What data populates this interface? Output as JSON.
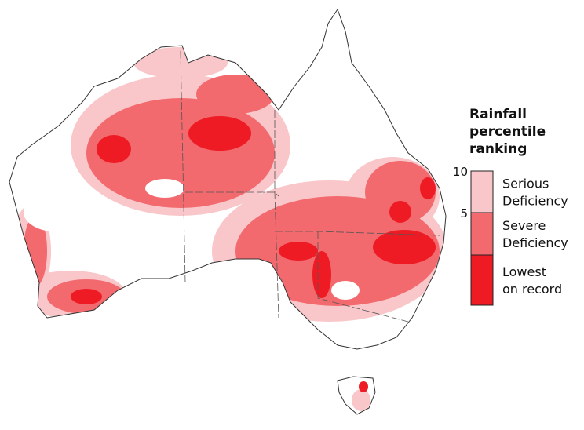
{
  "legend": {
    "title": [
      "Rainfall",
      "percentile",
      "ranking"
    ],
    "ticks": [
      10,
      5
    ],
    "items": [
      {
        "label": [
          "Serious",
          "Deficiency"
        ],
        "color": "#f9c6c9"
      },
      {
        "label": [
          "Severe",
          "Deficiency"
        ],
        "color": "#f2696e"
      },
      {
        "label": [
          "Lowest",
          "on record"
        ],
        "color": "#ee1b24"
      }
    ]
  }
}
